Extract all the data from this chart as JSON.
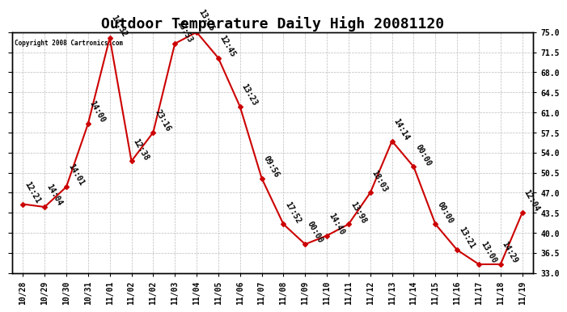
{
  "title": "Outdoor Temperature Daily High 20081120",
  "copyright": "Copyright 2008 Cartronics.com",
  "x_labels": [
    "10/28",
    "10/29",
    "10/30",
    "10/31",
    "11/01",
    "11/02",
    "11/02",
    "11/03",
    "11/04",
    "11/05",
    "11/06",
    "11/07",
    "11/08",
    "11/09",
    "11/10",
    "11/11",
    "11/12",
    "11/13",
    "11/14",
    "11/15",
    "11/16",
    "11/17",
    "11/18",
    "11/19"
  ],
  "x_axis_labels": [
    "10/28",
    "10/29",
    "10/30",
    "10/31",
    "11/01",
    "11/02",
    "11/03",
    "11/04",
    "11/05",
    "11/06",
    "11/07",
    "11/08",
    "11/09",
    "11/10",
    "11/11",
    "11/12",
    "11/13",
    "11/14",
    "11/15",
    "11/16",
    "11/17",
    "11/18",
    "11/19"
  ],
  "temperatures": [
    45.0,
    44.5,
    48.0,
    59.0,
    74.0,
    52.5,
    57.5,
    73.0,
    75.0,
    70.5,
    62.0,
    49.5,
    41.5,
    38.0,
    39.5,
    41.5,
    47.0,
    56.0,
    51.5,
    41.5,
    37.0,
    34.5,
    34.5,
    43.5
  ],
  "point_labels": [
    "12:21",
    "14:04",
    "14:01",
    "14:00",
    "14:32",
    "12:38",
    "23:16",
    "13:53",
    "13:25",
    "12:45",
    "13:23",
    "09:56",
    "17:52",
    "00:00",
    "14:40",
    "13:98",
    "18:03",
    "14:14",
    "00:00",
    "00:00",
    "13:21",
    "13:00",
    "14:29",
    "12:04"
  ],
  "ylim": [
    33.0,
    75.0
  ],
  "yticks": [
    33.0,
    36.5,
    40.0,
    43.5,
    47.0,
    50.5,
    54.0,
    57.5,
    61.0,
    64.5,
    68.0,
    71.5,
    75.0
  ],
  "ytick_labels": [
    "33.0",
    "36.5",
    "40.0",
    "43.5",
    "47.0",
    "50.5",
    "54.0",
    "57.5",
    "61.0",
    "64.5",
    "68.0",
    "71.5",
    "75.0"
  ],
  "line_color": "#cc0000",
  "marker_color": "#cc0000",
  "bg_color": "#ffffff",
  "grid_color": "#bbbbbb",
  "title_fontsize": 13,
  "label_fontsize": 7,
  "annotation_fontsize": 7
}
